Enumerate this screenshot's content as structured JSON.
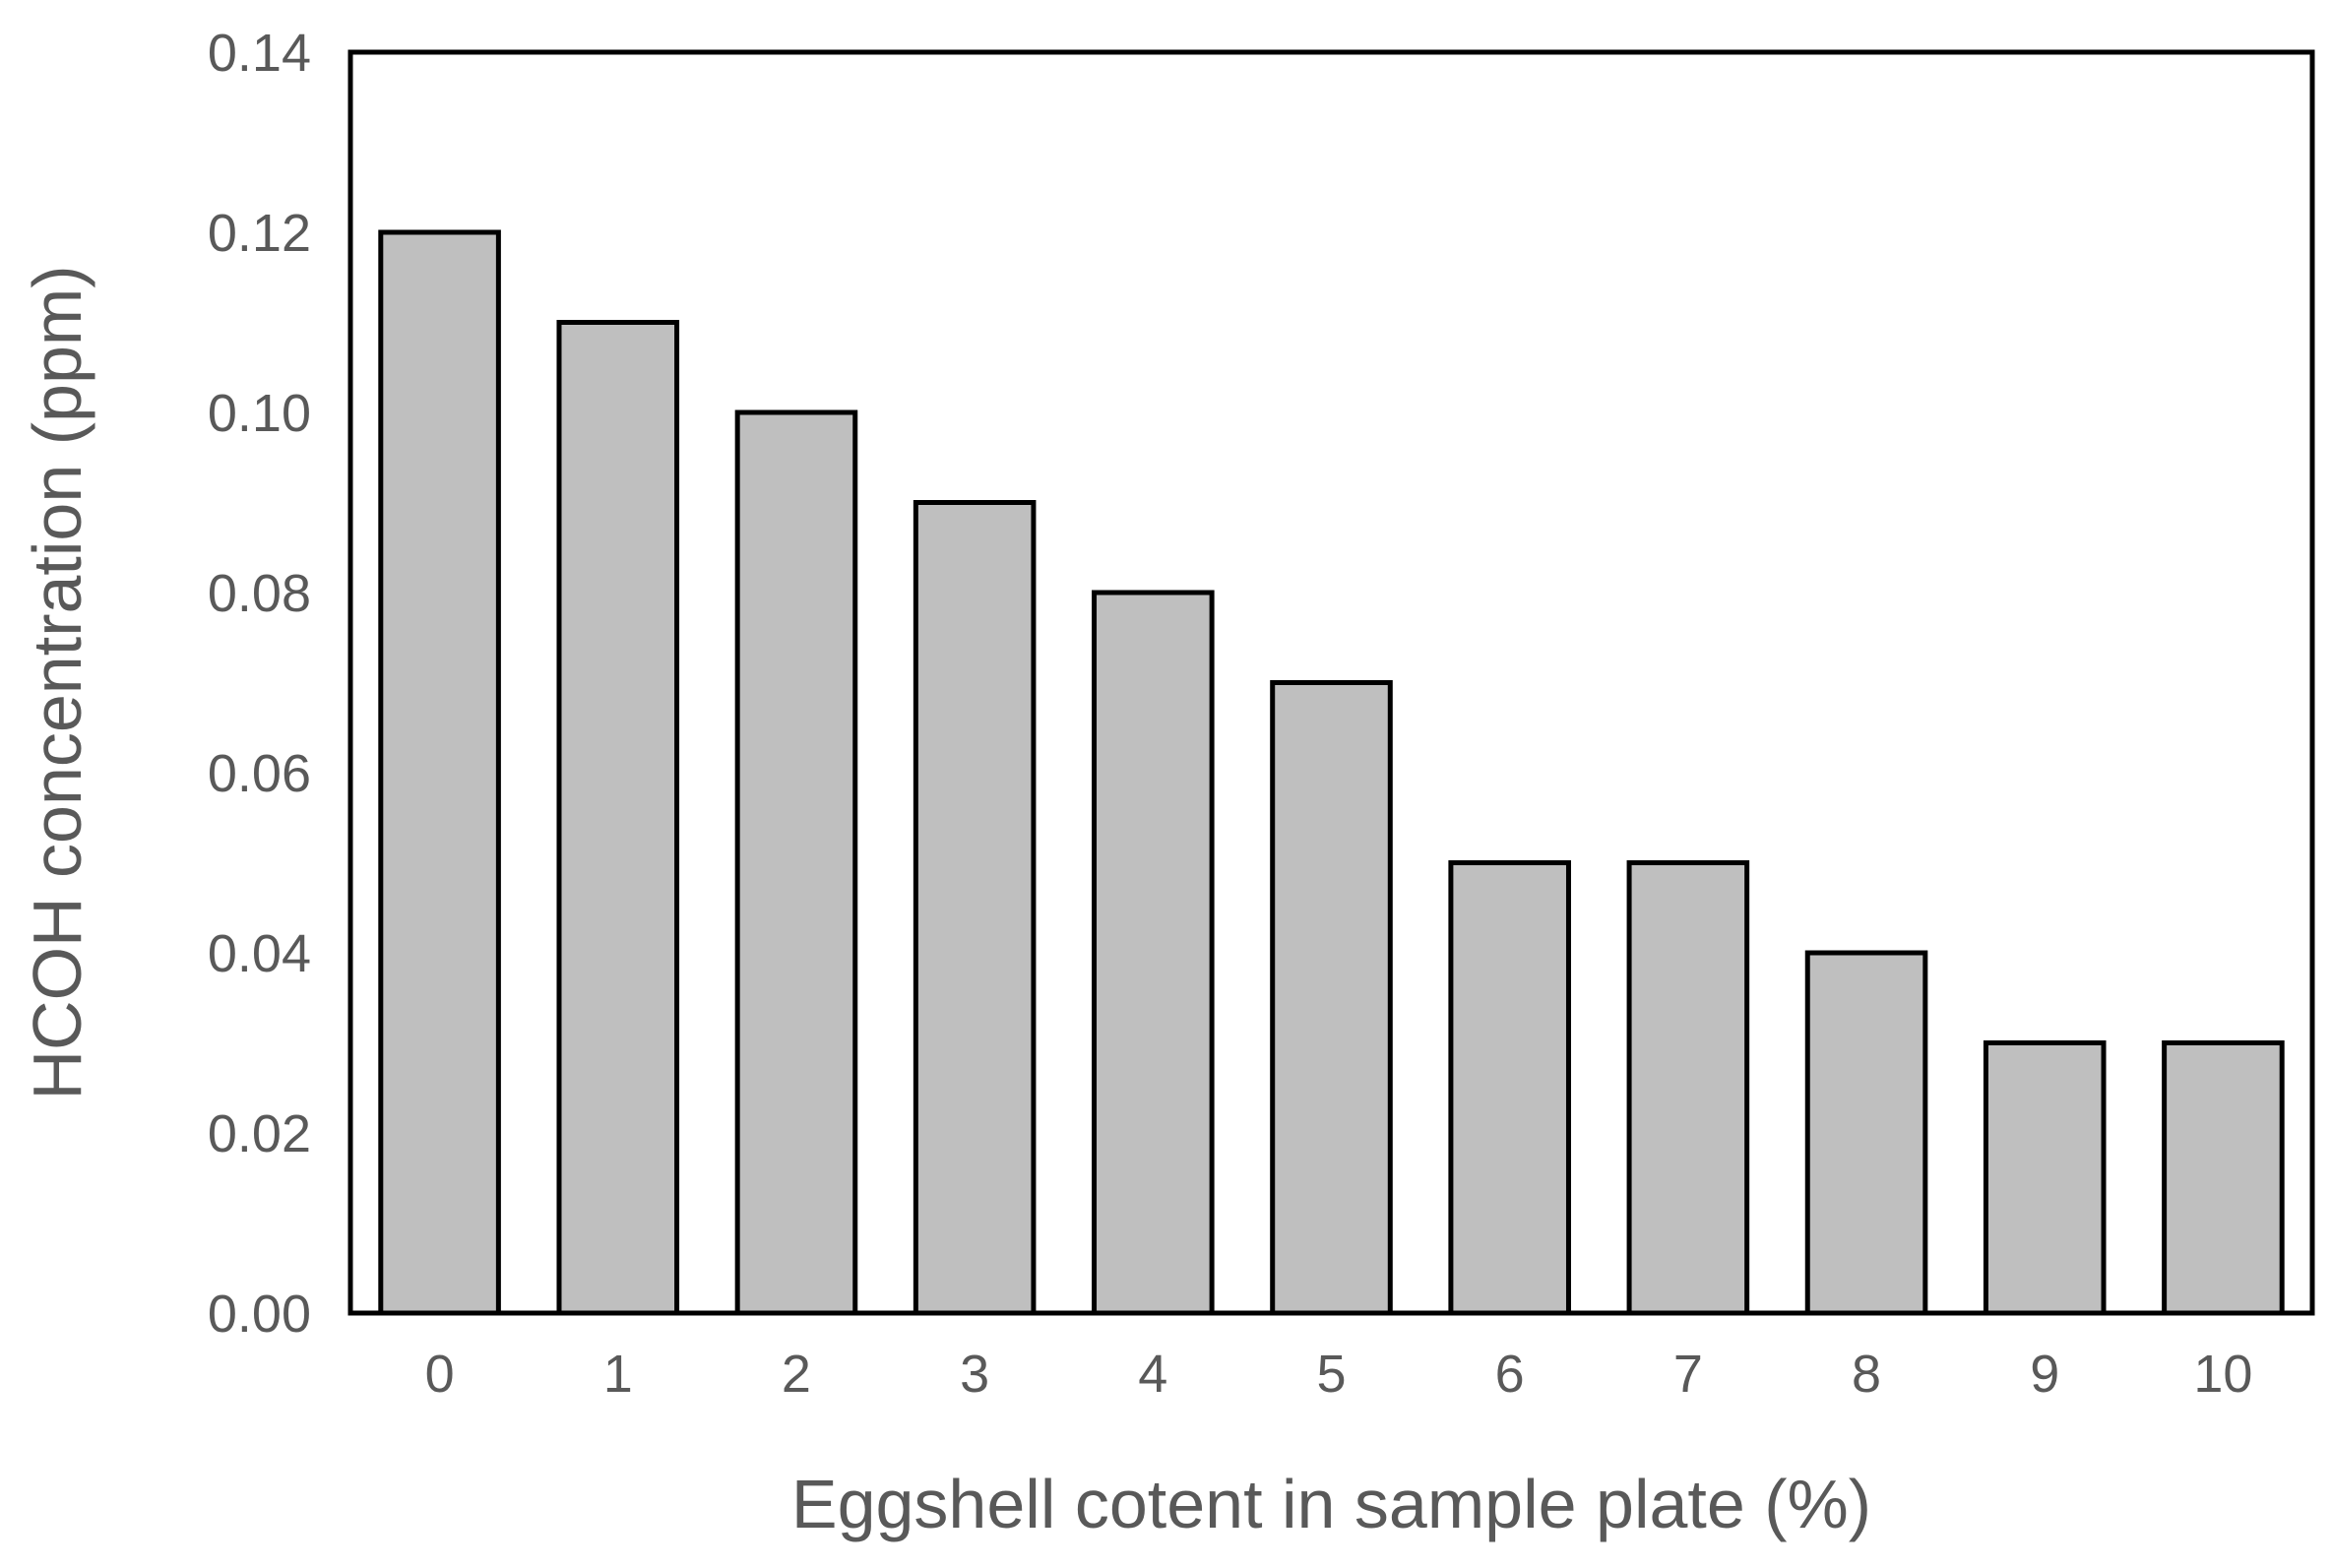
{
  "chart_data": {
    "type": "bar",
    "title": "",
    "xlabel": "Eggshell cotent in sample plate (%)",
    "ylabel": "HCOH concentration (ppm)",
    "categories": [
      "0",
      "1",
      "2",
      "3",
      "4",
      "5",
      "6",
      "7",
      "8",
      "9",
      "10"
    ],
    "values": [
      0.12,
      0.11,
      0.1,
      0.09,
      0.08,
      0.07,
      0.05,
      0.05,
      0.04,
      0.03,
      0.03
    ],
    "ylim": [
      0,
      0.14
    ],
    "yticks": [
      "0.00",
      "0.02",
      "0.04",
      "0.06",
      "0.08",
      "0.10",
      "0.12",
      "0.14"
    ],
    "grid": false,
    "legend": "none",
    "bar_color": "#bfbfbf",
    "bar_edge_color": "#000000"
  }
}
